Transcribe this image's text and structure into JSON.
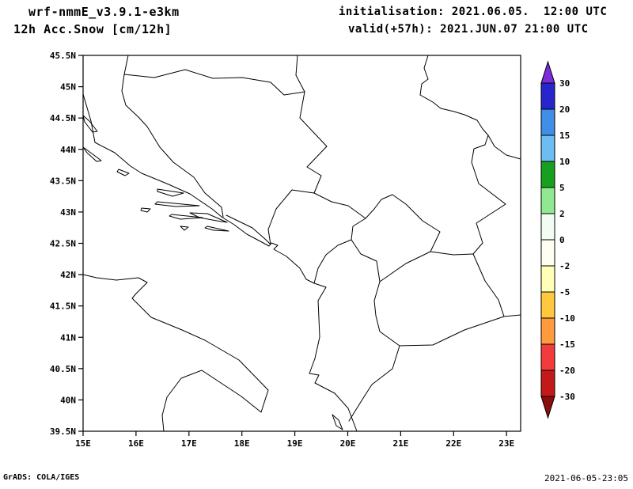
{
  "header": {
    "model": "wrf-nmmE_v3.9.1-e3km",
    "product": "12h Acc.Snow [cm/12h]",
    "init_label": "initialisation: 2021.06.05.  12:00 UTC",
    "valid_label": "valid(+57h): 2021.JUN.07 21:00 UTC"
  },
  "footer": {
    "left": "GrADS: COLA/IGES",
    "right": "2021-06-05-23:05"
  },
  "axes": {
    "lat_labels": [
      "45.5N",
      "45N",
      "44.5N",
      "44N",
      "43.5N",
      "43N",
      "42.5N",
      "42N",
      "41.5N",
      "41N",
      "40.5N",
      "40N",
      "39.5N"
    ],
    "lon_labels": [
      "15E",
      "16E",
      "17E",
      "18E",
      "19E",
      "20E",
      "21E",
      "22E",
      "23E"
    ]
  },
  "colorbar": {
    "labels": [
      "30",
      "20",
      "15",
      "10",
      "5",
      "2",
      "0",
      "-2",
      "-5",
      "-10",
      "-15",
      "-20",
      "-30"
    ],
    "colors_top_to_bottom": [
      "#7d2cd9",
      "#2626cc",
      "#3f8fe8",
      "#6cbdf2",
      "#17a01e",
      "#90e890",
      "#f2fcf2",
      "#fffef0",
      "#ffffb8",
      "#ffc83e",
      "#ff9b3d",
      "#f23c3c",
      "#c41919",
      "#8c0d0d"
    ]
  },
  "chart_data": {
    "type": "heatmap",
    "title": "12h Acc.Snow [cm/12h]",
    "model": "wrf-nmmE_v3.9.1-e3km",
    "initialisation": "2021.06.05. 12:00 UTC",
    "valid": "(+57h) 2021.JUN.07 21:00 UTC",
    "x_axis": {
      "label": "longitude",
      "ticks": [
        "15E",
        "16E",
        "17E",
        "18E",
        "19E",
        "20E",
        "21E",
        "22E",
        "23E"
      ],
      "range": [
        15,
        23.3
      ]
    },
    "y_axis": {
      "label": "latitude",
      "ticks": [
        "45.5N",
        "45N",
        "44.5N",
        "44N",
        "43.5N",
        "43N",
        "42.5N",
        "42N",
        "41.5N",
        "41N",
        "40.5N",
        "40N",
        "39.5N"
      ],
      "range": [
        39.5,
        45.5
      ]
    },
    "colorbar_levels_cm": [
      -30,
      -20,
      -15,
      -10,
      -5,
      -2,
      0,
      2,
      5,
      10,
      15,
      20,
      30
    ],
    "field_summary": "entire mapped domain is white (values in the 0 bin): no 12h accumulated snow shown",
    "legend_position": "right",
    "grid": false
  }
}
